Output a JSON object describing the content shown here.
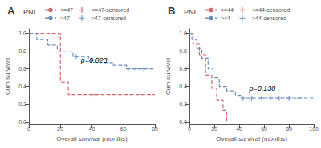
{
  "chart_data": [
    {
      "type": "line",
      "panel_label": "A",
      "title": "PNI",
      "xlabel": "Overall survival (months)",
      "ylabel": "Cum survival",
      "xlim": [
        0,
        80
      ],
      "ylim": [
        -0.02,
        1.05
      ],
      "xticks": [
        0,
        20,
        40,
        60,
        80
      ],
      "yticks": [
        {
          "value": 0.0,
          "label": "0.0"
        },
        0.2,
        0.4,
        0.6,
        0.8,
        {
          "value": 1.0,
          "label": "1.0"
        }
      ],
      "grid": false,
      "legend": "top",
      "annotations": [
        {
          "text": "p=0.023",
          "x": 33,
          "y": 0.7
        }
      ],
      "series": [
        {
          "name": "<=47",
          "type": "line",
          "line_style": "dashed",
          "color": "#d4666a",
          "x": [
            0,
            20,
            20,
            25,
            25,
            40,
            40,
            80
          ],
          "values": [
            1.0,
            1.0,
            0.45,
            0.45,
            0.31,
            0.31,
            0.31,
            0.31
          ]
        },
        {
          "name": ">47",
          "type": "line",
          "line_style": "dashed",
          "color": "#6c8ebf",
          "x": [
            0,
            5,
            5,
            12,
            12,
            18,
            18,
            28,
            28,
            38,
            38,
            48,
            48,
            53,
            53,
            62,
            62,
            80
          ],
          "values": [
            1.0,
            1.0,
            0.93,
            0.93,
            0.87,
            0.87,
            0.8,
            0.8,
            0.74,
            0.74,
            0.7,
            0.7,
            0.67,
            0.67,
            0.64,
            0.64,
            0.6,
            0.6
          ]
        },
        {
          "name": "<=47-censored",
          "type": "scatter",
          "marker": "+",
          "color": "#d4666a",
          "x": [
            42
          ],
          "values": [
            0.31
          ]
        },
        {
          "name": ">47-censored",
          "type": "scatter",
          "marker": "+",
          "color": "#6c8ebf",
          "x": [
            30,
            40,
            63,
            68,
            73
          ],
          "values": [
            0.74,
            0.7,
            0.6,
            0.6,
            0.6
          ]
        }
      ]
    },
    {
      "type": "line",
      "panel_label": "B",
      "title": "PNI",
      "xlabel": "Overall survival (months)",
      "ylabel": "Cum survival",
      "xlim": [
        0,
        100
      ],
      "ylim": [
        -0.02,
        1.05
      ],
      "xticks": [
        0,
        20,
        40,
        60,
        80,
        100
      ],
      "yticks": [
        {
          "value": 0.0,
          "label": "0.0"
        },
        0.2,
        0.4,
        0.6,
        0.8,
        {
          "value": 1.0,
          "label": "1.0"
        }
      ],
      "grid": false,
      "legend": "top",
      "annotations": [
        {
          "text": "p=0.138",
          "x": 48,
          "y": 0.38
        }
      ],
      "series": [
        {
          "name": "<=44",
          "type": "line",
          "line_style": "dashed",
          "color": "#d4666a",
          "x": [
            0,
            3,
            3,
            8,
            8,
            13,
            13,
            18,
            18,
            22,
            22,
            27,
            27,
            30,
            30
          ],
          "values": [
            1.0,
            1.0,
            0.88,
            0.88,
            0.76,
            0.76,
            0.53,
            0.53,
            0.38,
            0.38,
            0.25,
            0.25,
            0.13,
            0.13,
            0.0
          ]
        },
        {
          "name": ">44",
          "type": "line",
          "line_style": "dashed",
          "color": "#6c8ebf",
          "x": [
            0,
            2,
            2,
            6,
            6,
            10,
            10,
            15,
            15,
            19,
            19,
            24,
            24,
            30,
            30,
            37,
            37,
            42,
            42,
            100
          ],
          "values": [
            1.0,
            1.0,
            0.93,
            0.93,
            0.83,
            0.83,
            0.72,
            0.72,
            0.6,
            0.6,
            0.5,
            0.5,
            0.4,
            0.4,
            0.35,
            0.35,
            0.3,
            0.3,
            0.27,
            0.27
          ]
        },
        {
          "name": "<=44-censored",
          "type": "scatter",
          "marker": "+",
          "color": "#d4666a",
          "x": [],
          "values": []
        },
        {
          "name": ">44-censored",
          "type": "scatter",
          "marker": "+",
          "color": "#6c8ebf",
          "x": [
            43,
            50,
            58,
            65,
            72,
            80,
            88
          ],
          "values": [
            0.27,
            0.27,
            0.27,
            0.27,
            0.27,
            0.27,
            0.27
          ]
        }
      ]
    }
  ]
}
